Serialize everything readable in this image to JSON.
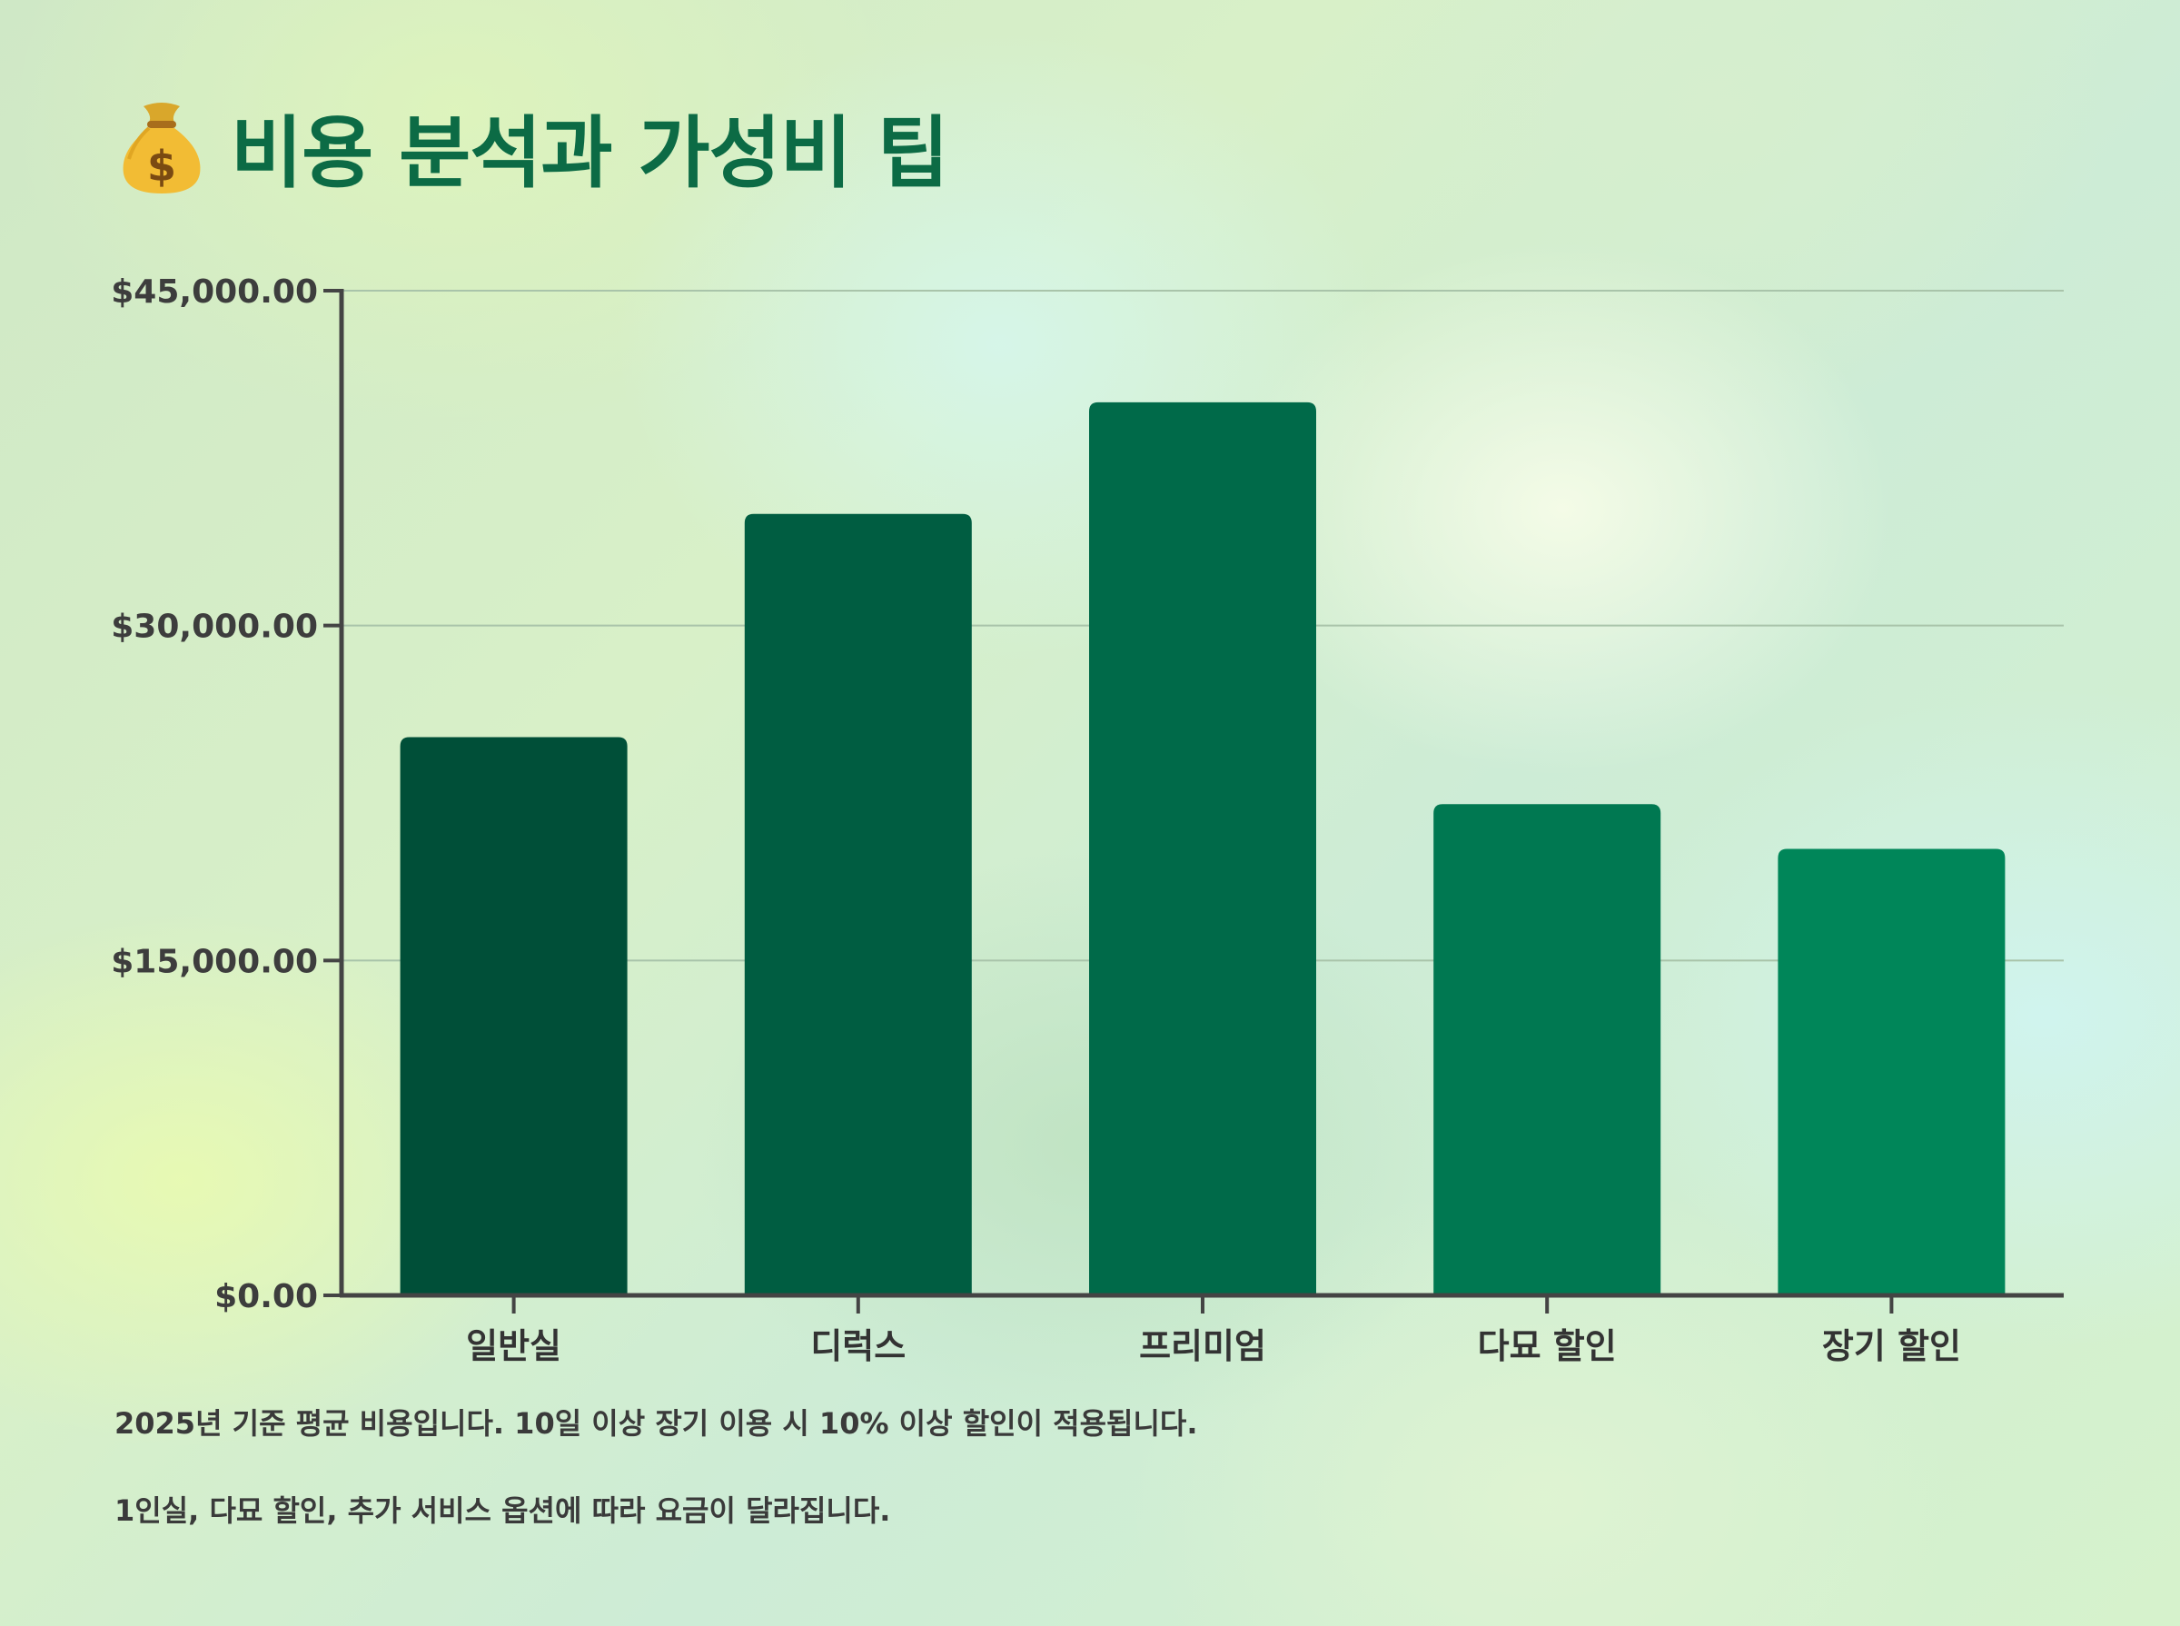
{
  "header": {
    "title": "비용 분석과 가성비 팁",
    "icon": "money-bag-icon"
  },
  "chart_data": {
    "type": "bar",
    "categories": [
      "일반실",
      "디럭스",
      "프리미엄",
      "다묘 할인",
      "장기 할인"
    ],
    "values": [
      25000,
      35000,
      40000,
      22000,
      20000
    ],
    "ylim": [
      0,
      45000
    ],
    "yticks": [
      0,
      15000,
      30000,
      45000
    ],
    "ytick_labels": [
      "$0.00",
      "$15,000.00",
      "$30,000.00",
      "$45,000.00"
    ],
    "bar_colors": [
      "#004f38",
      "#005d41",
      "#006a49",
      "#007851",
      "#008659"
    ],
    "grid": true,
    "xlabel": "",
    "ylabel": ""
  },
  "notes": [
    "2025년 기준 평균 비용입니다. 10일 이상 장기 이용 시 10% 이상 할인이 적용됩니다.",
    "1인실, 다묘 할인, 추가 서비스 옵션에 따라 요금이 달라집니다."
  ]
}
